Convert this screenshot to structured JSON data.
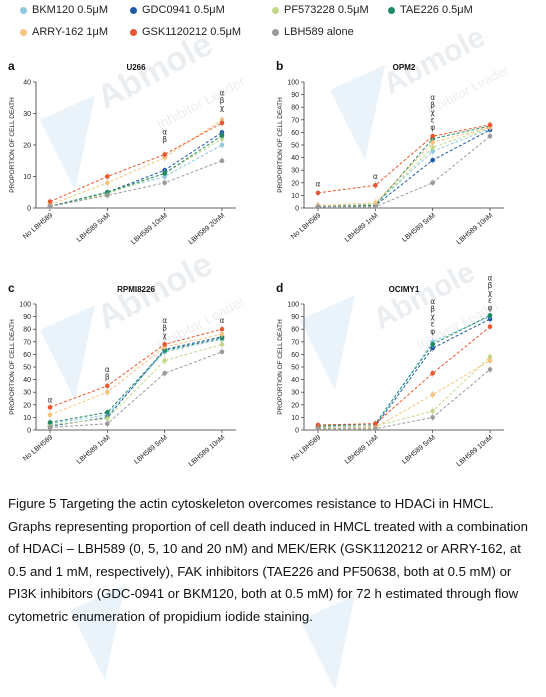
{
  "caption": "Figure 5 Targeting the actin cytoskeleton overcomes resistance to HDACi in HMCL. Graphs representing proportion of cell death induced in HMCL treated with a combination of HDACi – LBH589 (0, 5, 10 and 20 nM) and MEK/ERK (GSK1120212 or ARRY-162, at 0.5 and 1 mM, respectively), FAK inhibitors (TAE226 and PF50638, both at 0.5 mM) or PI3K inhibitors (GDC-0941 or BKM120, both at 0.5 mM) for 72 h estimated through flow cytometric enumeration of propidium iodide staining.",
  "watermark": {
    "brand": "Abmole",
    "tagline": "Inhibitor Leader"
  },
  "legend": [
    {
      "name": "BKM120 0.5μM",
      "color": "#8ec9e0"
    },
    {
      "name": "GDC0941 0.5μM",
      "color": "#1f5aa6"
    },
    {
      "name": "PF573228 0.5μM",
      "color": "#c3d98a"
    },
    {
      "name": "TAE226 0.5μM",
      "color": "#1e8a62"
    },
    {
      "name": "ARRY-162 1μM",
      "color": "#f6c57d"
    },
    {
      "name": "GSK1120212 0.5μM",
      "color": "#e8572f"
    },
    {
      "name": "LBH589 alone",
      "color": "#9a9a9a"
    }
  ],
  "chart_data": [
    {
      "type": "line",
      "letter": "a",
      "title": "U266",
      "ylabel": "PROPORTION OF CELL DEATH",
      "ylim": [
        0,
        40
      ],
      "yticks": [
        0,
        10,
        20,
        30,
        40
      ],
      "categories": [
        "No LBH589",
        "LBH589 5nM",
        "LBH589 10nM",
        "LBH589 20nM"
      ],
      "series": [
        {
          "name": "BKM120 0.5μM",
          "values": [
            0.5,
            5,
            10,
            20
          ]
        },
        {
          "name": "GDC0941 0.5μM",
          "values": [
            0.5,
            5,
            12,
            24
          ]
        },
        {
          "name": "PF573228 0.5μM",
          "values": [
            0.5,
            4.5,
            11,
            22
          ]
        },
        {
          "name": "TAE226 0.5μM",
          "values": [
            0.5,
            5,
            11,
            23
          ]
        },
        {
          "name": "ARRY-162 1μM",
          "values": [
            1,
            8,
            16,
            28
          ]
        },
        {
          "name": "GSK1120212 0.5μM",
          "values": [
            2,
            10,
            17,
            27
          ]
        },
        {
          "name": "LBH589 alone",
          "values": [
            0.5,
            4,
            8,
            15
          ]
        }
      ],
      "annotations": [
        {
          "category": "LBH589 10nM",
          "value": 21,
          "text": "α\nβ"
        },
        {
          "category": "LBH589 20nM",
          "value": 31,
          "text": "α\nβ\nχ"
        }
      ]
    },
    {
      "type": "line",
      "letter": "b",
      "title": "OPM2",
      "ylabel": "PROPORTION OF CELL DEATH",
      "ylim": [
        0,
        100
      ],
      "yticks": [
        0,
        10,
        20,
        30,
        40,
        50,
        60,
        70,
        80,
        90,
        100
      ],
      "categories": [
        "No LBH589",
        "LBH589 1nM",
        "LBH589 5nM",
        "LBH589 10nM"
      ],
      "series": [
        {
          "name": "BKM120 0.5μM",
          "values": [
            2,
            3,
            45,
            63
          ]
        },
        {
          "name": "GDC0941 0.5μM",
          "values": [
            1,
            2,
            38,
            62
          ]
        },
        {
          "name": "PF573228 0.5μM",
          "values": [
            2,
            3,
            48,
            64
          ]
        },
        {
          "name": "TAE226 0.5μM",
          "values": [
            1,
            2,
            55,
            65
          ]
        },
        {
          "name": "ARRY-162 1μM",
          "values": [
            2,
            4,
            52,
            64
          ]
        },
        {
          "name": "GSK1120212 0.5μM",
          "values": [
            12,
            18,
            57,
            66
          ]
        },
        {
          "name": "LBH589 alone",
          "values": [
            1,
            1,
            20,
            57
          ]
        }
      ],
      "annotations": [
        {
          "category": "No LBH589",
          "value": 17,
          "text": "α"
        },
        {
          "category": "LBH589 1nM",
          "value": 23,
          "text": "α"
        },
        {
          "category": "LBH589 5nM",
          "value": 62,
          "text": "α\nβ\nχ\nε\nφ"
        }
      ]
    },
    {
      "type": "line",
      "letter": "c",
      "title": "RPMI8226",
      "ylabel": "PROPORTION OF CELL DEATH",
      "ylim": [
        0,
        100
      ],
      "yticks": [
        0,
        10,
        20,
        30,
        40,
        50,
        60,
        70,
        80,
        90,
        100
      ],
      "categories": [
        "No LBH589",
        "LBH589 1nM",
        "LBH589 5nM",
        "LBH589 10nM"
      ],
      "series": [
        {
          "name": "BKM120 0.5μM",
          "values": [
            5,
            12,
            62,
            72
          ]
        },
        {
          "name": "GDC0941 0.5μM",
          "values": [
            3,
            10,
            64,
            74
          ]
        },
        {
          "name": "PF573228 0.5μM",
          "values": [
            4,
            9,
            55,
            68
          ]
        },
        {
          "name": "TAE226 0.5μM",
          "values": [
            6,
            14,
            63,
            73
          ]
        },
        {
          "name": "ARRY-162 1μM",
          "values": [
            12,
            30,
            66,
            76
          ]
        },
        {
          "name": "GSK1120212 0.5μM",
          "values": [
            18,
            35,
            68,
            80
          ]
        },
        {
          "name": "LBH589 alone",
          "values": [
            2,
            5,
            45,
            62
          ]
        }
      ],
      "annotations": [
        {
          "category": "No LBH589",
          "value": 22,
          "text": "α"
        },
        {
          "category": "LBH589 1nM",
          "value": 40,
          "text": "α\nβ"
        },
        {
          "category": "LBH589 5nM",
          "value": 73,
          "text": "α\nβ\nχ"
        },
        {
          "category": "LBH589 10nM",
          "value": 85,
          "text": "α"
        }
      ]
    },
    {
      "type": "line",
      "letter": "d",
      "title": "OCIMY1",
      "ylabel": "PROPORTION OF CELL DEATH",
      "ylim": [
        0,
        100
      ],
      "yticks": [
        0,
        10,
        20,
        30,
        40,
        50,
        60,
        70,
        80,
        90,
        100
      ],
      "categories": [
        "No LBH589",
        "LBH589 1nM",
        "LBH589 5nM",
        "LBH589 10nM"
      ],
      "series": [
        {
          "name": "BKM120 0.5μM",
          "values": [
            3,
            4,
            70,
            90
          ]
        },
        {
          "name": "GDC0941 0.5μM",
          "values": [
            2,
            3,
            65,
            88
          ]
        },
        {
          "name": "PF573228 0.5μM",
          "values": [
            2,
            3,
            15,
            58
          ]
        },
        {
          "name": "TAE226 0.5μM",
          "values": [
            3,
            5,
            68,
            91
          ]
        },
        {
          "name": "ARRY-162 1μM",
          "values": [
            1,
            2,
            28,
            55
          ]
        },
        {
          "name": "GSK1120212 0.5μM",
          "values": [
            4,
            5,
            45,
            82
          ]
        },
        {
          "name": "LBH589 alone",
          "values": [
            1,
            1,
            10,
            48
          ]
        }
      ],
      "annotations": [
        {
          "category": "LBH589 5nM",
          "value": 76,
          "text": "α\nβ\nχ\nε\nφ"
        },
        {
          "category": "LBH589 10nM",
          "value": 95,
          "text": "α\nβ\nχ\nε\nφ"
        }
      ]
    }
  ]
}
